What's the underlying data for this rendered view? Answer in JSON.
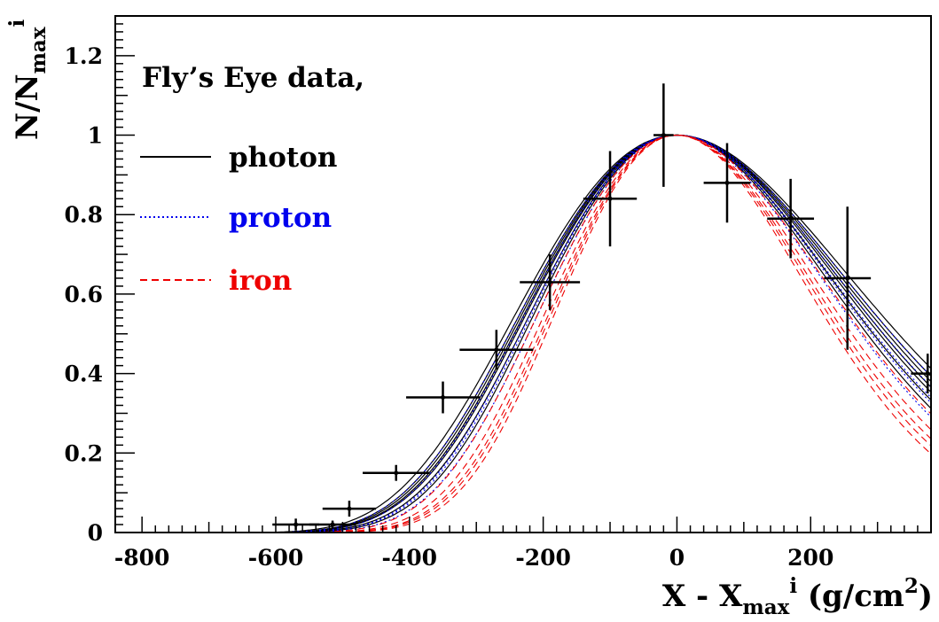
{
  "chart_data": {
    "type": "line",
    "xlabel": {
      "main": "X - X",
      "sub": "max",
      "sup": "i",
      "tail": " (g/cm",
      "tail_sup": "2",
      "end": ")"
    },
    "ylabel": {
      "main": "N/N",
      "sub": "max",
      "sup": "i"
    },
    "xlim": [
      -840,
      380
    ],
    "ylim": [
      0,
      1.3
    ],
    "x_ticks": [
      -800,
      -600,
      -400,
      -200,
      0,
      200
    ],
    "x_tick_labels": [
      "-800",
      "-600",
      "-400",
      "-200",
      "0",
      "200"
    ],
    "y_ticks": [
      0,
      0.2,
      0.4,
      0.6,
      0.8,
      1,
      1.2
    ],
    "y_tick_labels": [
      "0",
      "0.2",
      "0.4",
      "0.6",
      "0.8",
      "1",
      "1.2"
    ],
    "grid": false,
    "legend_position": "top-left",
    "legend": {
      "header": "Fly’s Eye data,",
      "entries": [
        {
          "label": "photon",
          "color": "#000000",
          "dash": "solid"
        },
        {
          "label": "proton",
          "color": "#0000ee",
          "dash": "dotted"
        },
        {
          "label": "iron",
          "color": "#ee0000",
          "dash": "dashed"
        }
      ]
    },
    "data_points": [
      {
        "x": -570,
        "y": 0.02,
        "xerr": 35,
        "yerr": 0.015
      },
      {
        "x": -515,
        "y": 0.02,
        "xerr": 35,
        "yerr": 0.01
      },
      {
        "x": -490,
        "y": 0.06,
        "xerr": 40,
        "yerr": 0.02
      },
      {
        "x": -420,
        "y": 0.15,
        "xerr": 50,
        "yerr": 0.02
      },
      {
        "x": -350,
        "y": 0.34,
        "xerr": 55,
        "yerr": 0.04
      },
      {
        "x": -270,
        "y": 0.46,
        "xerr": 55,
        "yerr": 0.05
      },
      {
        "x": -190,
        "y": 0.63,
        "xerr": 45,
        "yerr": 0.07
      },
      {
        "x": -100,
        "y": 0.84,
        "xerr": 40,
        "yerr": 0.12
      },
      {
        "x": -20,
        "y": 1.0,
        "xerr": 15,
        "yerr": 0.13
      },
      {
        "x": 75,
        "y": 0.88,
        "xerr": 35,
        "yerr": 0.1
      },
      {
        "x": 170,
        "y": 0.79,
        "xerr": 35,
        "yerr": 0.1
      },
      {
        "x": 255,
        "y": 0.64,
        "xerr": 35,
        "yerr": 0.18
      },
      {
        "x": 375,
        "y": 0.4,
        "xerr": 25,
        "yerr": 0.05
      }
    ],
    "series": [
      {
        "label": "photon",
        "color": "#000000",
        "dash": "solid",
        "profiles": [
          [
            248,
            38
          ],
          [
            248,
            44
          ],
          [
            248,
            50
          ],
          [
            252,
            42
          ],
          [
            246,
            46
          ],
          [
            250,
            40
          ],
          [
            244,
            48
          ]
        ]
      },
      {
        "label": "proton",
        "color": "#0000ee",
        "dash": "dotted",
        "profiles": [
          [
            244,
            40
          ],
          [
            242,
            45
          ],
          [
            246,
            36
          ],
          [
            240,
            42
          ],
          [
            244,
            48
          ]
        ]
      },
      {
        "label": "iron",
        "color": "#ee0000",
        "dash": "dashed",
        "profiles": [
          [
            238,
            30
          ],
          [
            236,
            34
          ],
          [
            240,
            28
          ],
          [
            236,
            38
          ],
          [
            234,
            32
          ]
        ]
      }
    ]
  }
}
